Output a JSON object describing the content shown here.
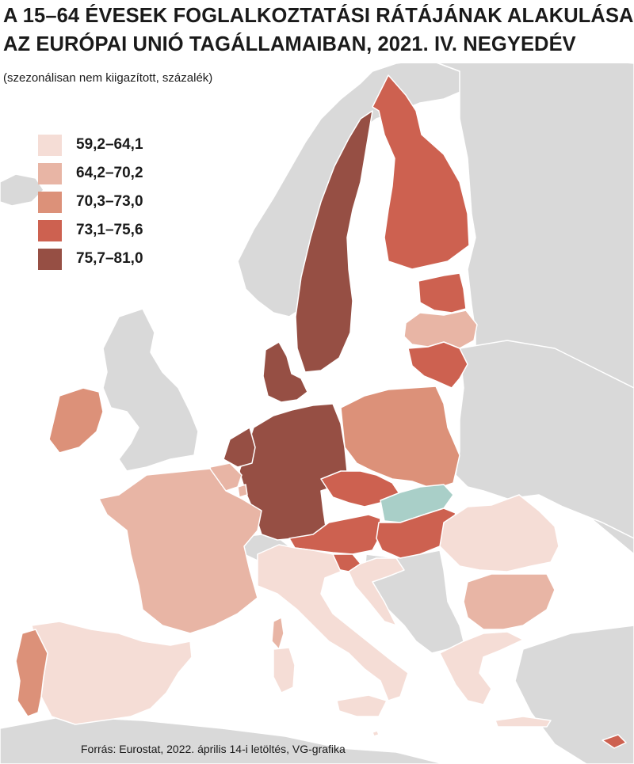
{
  "title_lines": [
    "A 15–64 ÉVESEK FOGLALKOZTATÁSI RÁTÁJÁNAK ALAKULÁSA",
    "AZ EURÓPAI UNIÓ TAGÁLLAMAIBAN, 2021. IV. NEGYEDÉV"
  ],
  "subtitle": "(szezonálisan nem kiigazított, százalék)",
  "source": "Forrás: Eurostat, 2022. április 14-i letöltés, VG-grafika",
  "colors": {
    "sea": "#ffffff",
    "non_eu": "#d9d9d9",
    "highlight": "#a9cfc8",
    "class1": "#f5ddd6",
    "class2": "#e8b5a5",
    "class3": "#dc9179",
    "class4": "#cd6150",
    "class5": "#964f44"
  },
  "legend": [
    {
      "label": "59,2–64,1",
      "class": "class1"
    },
    {
      "label": "64,2–70,2",
      "class": "class2"
    },
    {
      "label": "70,3–73,0",
      "class": "class3"
    },
    {
      "label": "73,1–75,6",
      "class": "class4"
    },
    {
      "label": "75,7–81,0",
      "class": "class5"
    }
  ]
}
